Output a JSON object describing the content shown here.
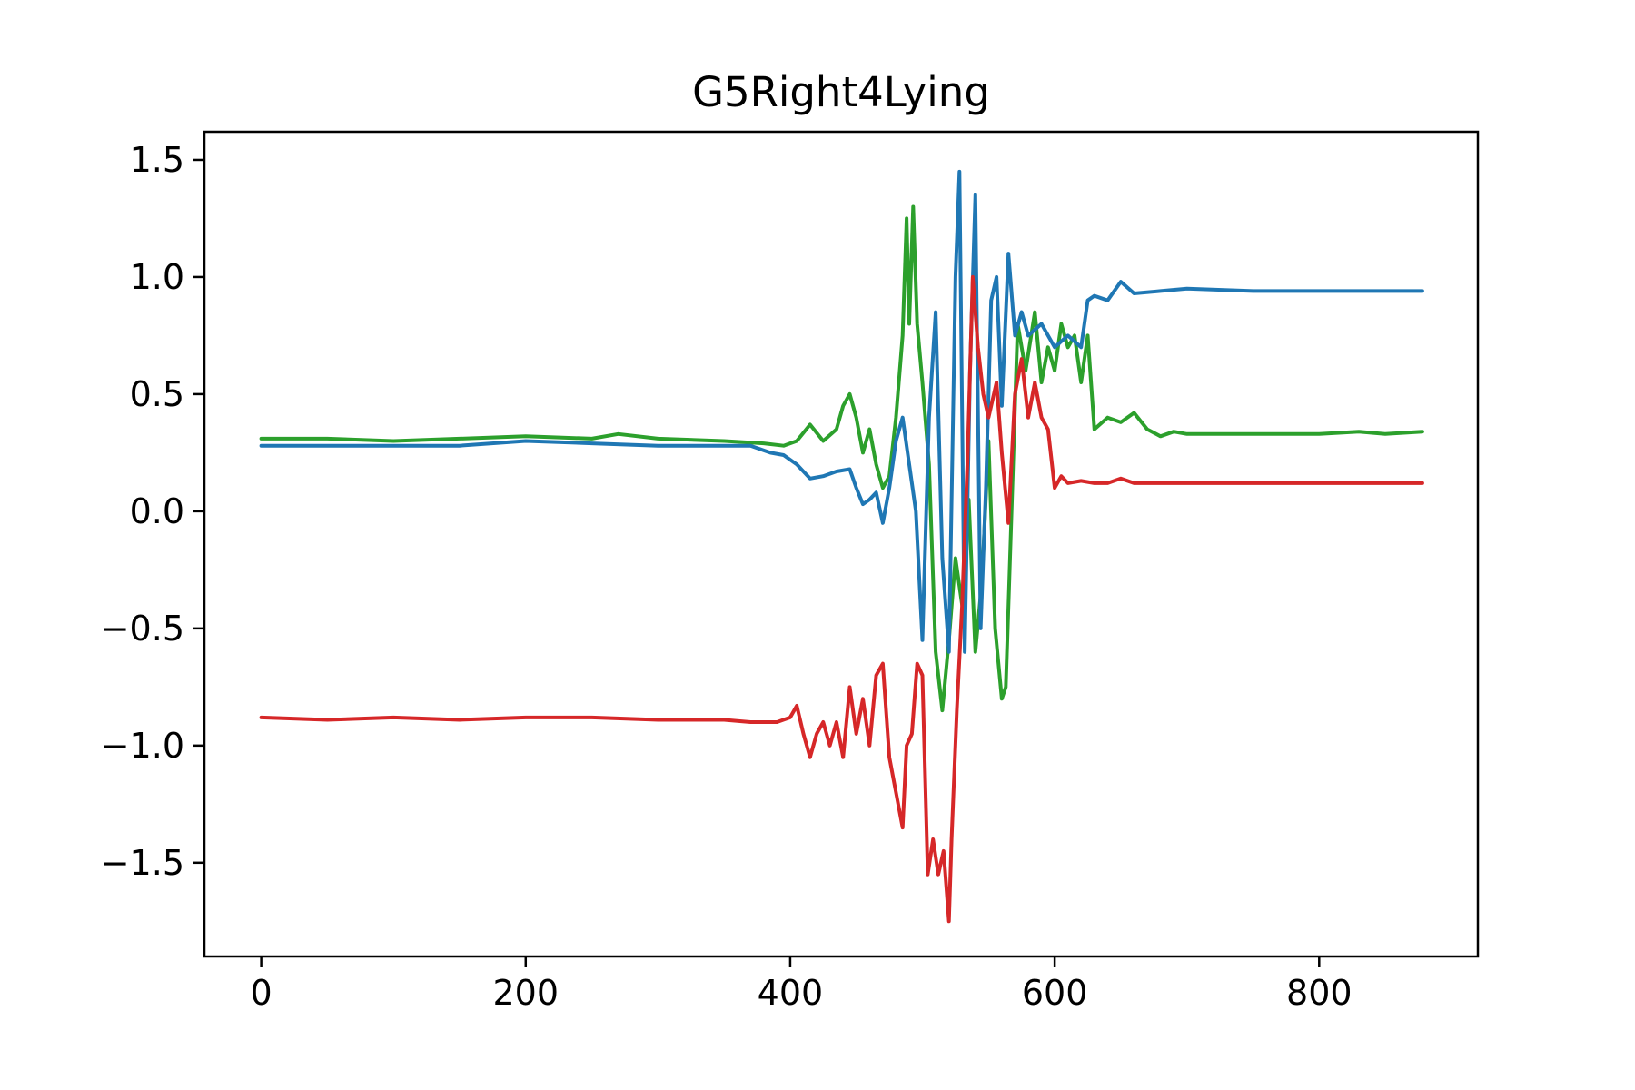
{
  "chart_data": {
    "type": "line",
    "title": "G5Right4Lying",
    "xlabel": "",
    "ylabel": "",
    "xlim": [
      -43,
      920
    ],
    "ylim": [
      -1.9,
      1.62
    ],
    "grid": false,
    "x_ticks": [
      {
        "value": 0,
        "label": "0"
      },
      {
        "value": 200,
        "label": "200"
      },
      {
        "value": 400,
        "label": "400"
      },
      {
        "value": 600,
        "label": "600"
      },
      {
        "value": 800,
        "label": "800"
      }
    ],
    "y_ticks": [
      {
        "value": 1.5,
        "label": "1.5"
      },
      {
        "value": 1.0,
        "label": "1.0"
      },
      {
        "value": 0.5,
        "label": "0.5"
      },
      {
        "value": 0.0,
        "label": "0.0"
      },
      {
        "value": -0.5,
        "label": "−0.5"
      },
      {
        "value": -1.0,
        "label": "−1.0"
      },
      {
        "value": -1.5,
        "label": "−1.5"
      }
    ],
    "series": [
      {
        "color": "#2ca02c",
        "x": [
          0,
          50,
          100,
          150,
          200,
          250,
          270,
          300,
          350,
          380,
          395,
          405,
          415,
          425,
          435,
          440,
          445,
          450,
          455,
          460,
          465,
          470,
          475,
          480,
          485,
          488,
          490,
          493,
          496,
          500,
          505,
          510,
          515,
          520,
          525,
          530,
          535,
          540,
          545,
          550,
          555,
          560,
          563,
          568,
          572,
          578,
          585,
          590,
          595,
          600,
          605,
          610,
          615,
          620,
          625,
          630,
          640,
          650,
          660,
          670,
          680,
          690,
          700,
          750,
          800,
          830,
          850,
          878
        ],
        "y": [
          0.31,
          0.31,
          0.3,
          0.31,
          0.32,
          0.31,
          0.33,
          0.31,
          0.3,
          0.29,
          0.28,
          0.3,
          0.37,
          0.3,
          0.35,
          0.45,
          0.5,
          0.4,
          0.25,
          0.35,
          0.2,
          0.1,
          0.15,
          0.4,
          0.75,
          1.25,
          0.8,
          1.3,
          0.8,
          0.55,
          0.2,
          -0.6,
          -0.85,
          -0.55,
          -0.2,
          -0.4,
          0.05,
          -0.6,
          -0.3,
          0.3,
          -0.5,
          -0.8,
          -0.75,
          0.1,
          0.8,
          0.6,
          0.85,
          0.55,
          0.7,
          0.6,
          0.8,
          0.7,
          0.75,
          0.55,
          0.75,
          0.35,
          0.4,
          0.38,
          0.42,
          0.35,
          0.32,
          0.34,
          0.33,
          0.33,
          0.33,
          0.34,
          0.33,
          0.34
        ]
      },
      {
        "color": "#1f77b4",
        "x": [
          0,
          50,
          100,
          150,
          200,
          250,
          300,
          350,
          370,
          385,
          395,
          405,
          415,
          425,
          435,
          445,
          450,
          455,
          460,
          465,
          470,
          475,
          480,
          485,
          490,
          495,
          500,
          505,
          510,
          515,
          520,
          525,
          528,
          532,
          536,
          540,
          544,
          548,
          552,
          556,
          560,
          565,
          570,
          575,
          580,
          590,
          600,
          610,
          620,
          625,
          630,
          640,
          650,
          660,
          680,
          700,
          750,
          800,
          850,
          878
        ],
        "y": [
          0.28,
          0.28,
          0.28,
          0.28,
          0.3,
          0.29,
          0.28,
          0.28,
          0.28,
          0.25,
          0.24,
          0.2,
          0.14,
          0.15,
          0.17,
          0.18,
          0.1,
          0.03,
          0.05,
          0.08,
          -0.05,
          0.1,
          0.3,
          0.4,
          0.2,
          0.0,
          -0.55,
          0.4,
          0.85,
          -0.2,
          -0.6,
          1.0,
          1.45,
          -0.6,
          0.6,
          1.35,
          -0.5,
          0.1,
          0.9,
          1.0,
          0.45,
          1.1,
          0.75,
          0.85,
          0.75,
          0.8,
          0.7,
          0.75,
          0.7,
          0.9,
          0.92,
          0.9,
          0.98,
          0.93,
          0.94,
          0.95,
          0.94,
          0.94,
          0.94,
          0.94
        ]
      },
      {
        "color": "#d62728",
        "x": [
          0,
          50,
          100,
          150,
          200,
          250,
          300,
          350,
          370,
          390,
          400,
          405,
          410,
          415,
          420,
          425,
          430,
          435,
          440,
          445,
          450,
          455,
          460,
          465,
          470,
          475,
          480,
          485,
          488,
          492,
          496,
          500,
          504,
          508,
          512,
          516,
          520,
          522,
          526,
          530,
          534,
          538,
          542,
          546,
          550,
          556,
          560,
          565,
          570,
          575,
          580,
          585,
          590,
          595,
          600,
          605,
          610,
          620,
          630,
          640,
          650,
          660,
          700,
          750,
          800,
          850,
          878
        ],
        "y": [
          -0.88,
          -0.89,
          -0.88,
          -0.89,
          -0.88,
          -0.88,
          -0.89,
          -0.89,
          -0.9,
          -0.9,
          -0.88,
          -0.83,
          -0.95,
          -1.05,
          -0.95,
          -0.9,
          -1.0,
          -0.9,
          -1.05,
          -0.75,
          -0.95,
          -0.8,
          -1.0,
          -0.7,
          -0.65,
          -1.05,
          -1.2,
          -1.35,
          -1.0,
          -0.95,
          -0.65,
          -0.7,
          -1.55,
          -1.4,
          -1.55,
          -1.45,
          -1.75,
          -1.4,
          -0.85,
          -0.4,
          0.2,
          1.0,
          0.7,
          0.5,
          0.4,
          0.55,
          0.25,
          -0.05,
          0.5,
          0.65,
          0.4,
          0.55,
          0.4,
          0.35,
          0.1,
          0.15,
          0.12,
          0.13,
          0.12,
          0.12,
          0.14,
          0.12,
          0.12,
          0.12,
          0.12,
          0.12,
          0.12
        ]
      }
    ]
  }
}
